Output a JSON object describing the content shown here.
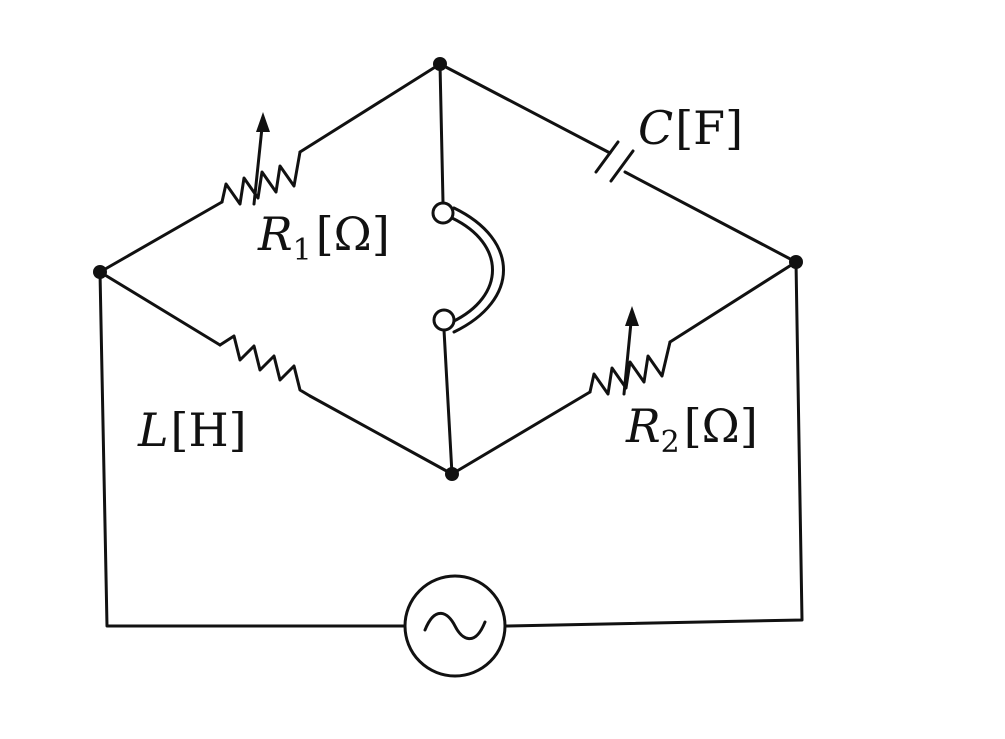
{
  "components": {
    "r1": {
      "symbol": "R",
      "subscript": "1",
      "unit": "[Ω]"
    },
    "capacitor": {
      "symbol": "C",
      "unit": "[F]"
    },
    "inductor": {
      "symbol": "L",
      "unit": "[H]"
    },
    "r2": {
      "symbol": "R",
      "subscript": "2",
      "unit": "[Ω]"
    }
  },
  "colors": {
    "line": "#111111",
    "background": "#ffffff"
  },
  "icons": {
    "source": "ac-source-icon",
    "detector": "receiver-icon"
  }
}
